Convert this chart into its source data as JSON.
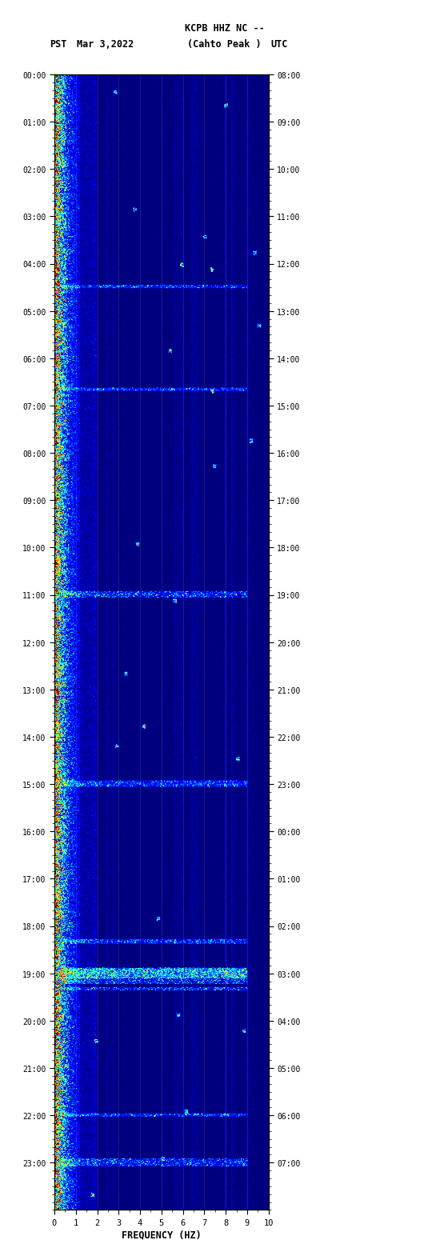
{
  "title_line1": "KCPB HHZ NC --",
  "title_line2": "(Cahto Peak )",
  "left_label": "PST",
  "date_label": "Mar 3,2022",
  "right_label": "UTC",
  "freq_label": "FREQUENCY (HZ)",
  "freq_min": 0,
  "freq_max": 10,
  "freq_ticks": [
    0,
    1,
    2,
    3,
    4,
    5,
    6,
    7,
    8,
    9,
    10
  ],
  "time_hours": 24,
  "fig_background": "#ffffff",
  "usgs_green": "#1a6b1a",
  "spectrogram_cmap": "jet",
  "fig_width": 5.52,
  "fig_height": 16.13,
  "left_ticks_hours": [
    0,
    1,
    2,
    3,
    4,
    5,
    6,
    7,
    8,
    9,
    10,
    11,
    12,
    13,
    14,
    15,
    16,
    17,
    18,
    19,
    20,
    21,
    22,
    23
  ],
  "right_ticks_hours": [
    8,
    9,
    10,
    11,
    12,
    13,
    14,
    15,
    16,
    17,
    18,
    19,
    20,
    21,
    22,
    23,
    0,
    1,
    2,
    3,
    4,
    5,
    6,
    7
  ]
}
